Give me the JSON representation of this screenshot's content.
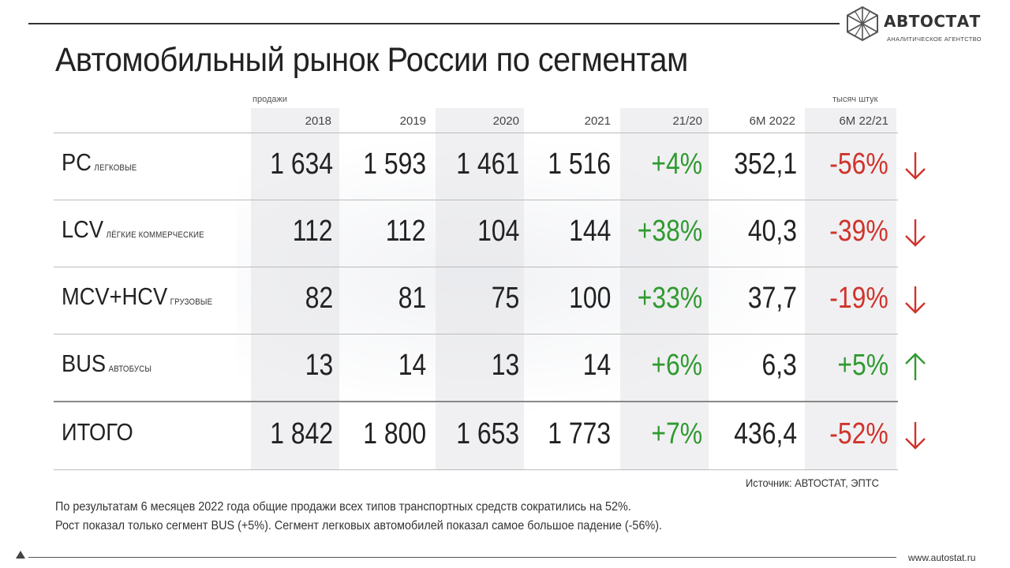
{
  "logo": {
    "name": "АВТОСТАТ",
    "subtitle": "АНАЛИТИЧЕСКОЕ АГЕНТСТВО"
  },
  "title": "Автомобильный рынок России по сегментам",
  "labels": {
    "sales": "продажи",
    "units": "тысяч штук"
  },
  "columns": [
    "2018",
    "2019",
    "2020",
    "2021",
    "21/20",
    "6М 2022",
    "6М 22/21"
  ],
  "rows": [
    {
      "code": "PC",
      "sub": "легковые",
      "values": [
        "1 634",
        "1 593",
        "1 461",
        "1 516"
      ],
      "change_21_20": "+4%",
      "h1_2022": "352,1",
      "change_22_21": "-56%",
      "trend": "down"
    },
    {
      "code": "LCV",
      "sub": "лёгкие коммерческие",
      "values": [
        "112",
        "112",
        "104",
        "144"
      ],
      "change_21_20": "+38%",
      "h1_2022": "40,3",
      "change_22_21": "-39%",
      "trend": "down"
    },
    {
      "code": "MCV+HCV",
      "sub": "грузовые",
      "values": [
        "82",
        "81",
        "75",
        "100"
      ],
      "change_21_20": "+33%",
      "h1_2022": "37,7",
      "change_22_21": "-19%",
      "trend": "down"
    },
    {
      "code": "BUS",
      "sub": "автобусы",
      "values": [
        "13",
        "14",
        "13",
        "14"
      ],
      "change_21_20": "+6%",
      "h1_2022": "6,3",
      "change_22_21": "+5%",
      "trend": "up"
    },
    {
      "code": "ИТОГО",
      "sub": "",
      "values": [
        "1 842",
        "1 800",
        "1 653",
        "1 773"
      ],
      "change_21_20": "+7%",
      "h1_2022": "436,4",
      "change_22_21": "-52%",
      "trend": "down"
    }
  ],
  "source": "Источник: АВТОСТАТ, ЭПТС",
  "notes": [
    "По результатам 6 месяцев 2022 года общие продажи всех типов транспортных средств сократились на 52%.",
    "Рост показал только сегмент BUS (+5%). Сегмент легковых автомобилей показал самое большое падение (-56%)."
  ],
  "url": "www.autostat.ru",
  "colors": {
    "positive": "#2f9a2f",
    "negative": "#d0332b",
    "text": "#222222"
  },
  "icons": {
    "down": "arrow-down-icon",
    "up": "arrow-up-icon"
  }
}
